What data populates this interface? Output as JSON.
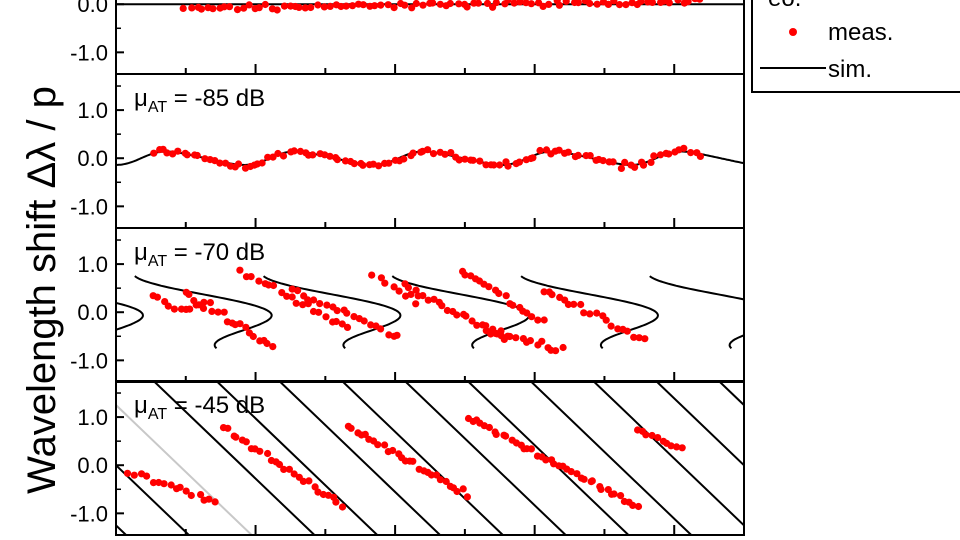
{
  "chart_data": {
    "type": "scatter",
    "ylabel": "Wavelength shift Δλ / p",
    "legend": {
      "placement": "top-right",
      "header_fragment": "eo.",
      "entries": [
        {
          "label": "meas.",
          "kind": "marker",
          "color": "#ff0000"
        },
        {
          "label": "sim.",
          "kind": "line",
          "color": "#000000"
        }
      ]
    },
    "colors": {
      "measured": "#ff0000",
      "simulated": "#000000",
      "faded_sim": "#c8c8c8"
    },
    "xlim": [
      0,
      1
    ],
    "ylim": [
      -1.45,
      1.75
    ],
    "yticks": [
      -1.0,
      0.0,
      1.0
    ],
    "ytick_labels": [
      "-1.0",
      "0.0",
      "1.0"
    ],
    "panels": [
      {
        "id": "top",
        "label": "",
        "model": {
          "kind": "flat",
          "value": 0.0
        },
        "measured_noise": 0.06,
        "measured_segments": [
          {
            "x_start": 0.11,
            "x_end": 0.93,
            "n": 90,
            "y_start": -0.08,
            "y_end": 0.06
          }
        ]
      },
      {
        "id": "mu85",
        "label": "μAT = -85 dB",
        "label_main": "μ",
        "label_sub": "AT",
        "label_value": " = -85 dB",
        "model": {
          "kind": "wave",
          "amplitude": 0.14,
          "period": 0.205,
          "phase": 0.04,
          "lean": 0.35
        },
        "measured_noise": 0.06,
        "measured_segments": [
          {
            "x_start": 0.06,
            "x_end": 0.93,
            "n": 110,
            "follow_model": true
          }
        ]
      },
      {
        "id": "mu70",
        "label": "μAT = -70 dB",
        "label_main": "μ",
        "label_sub": "AT",
        "label_value": " = -70 dB",
        "model": {
          "kind": "s-curve",
          "amplitude": 0.75,
          "period": 0.205,
          "phase": 0.03
        },
        "measured_noise": 0.06,
        "measured_segments": [
          {
            "x_start": 0.06,
            "x_end": 0.12,
            "n": 8,
            "y_start": 0.3,
            "y_end": 0.0
          },
          {
            "x_start": 0.11,
            "x_end": 0.14,
            "n": 6,
            "y_start": 0.35,
            "y_end": 0.1
          },
          {
            "x_start": 0.14,
            "x_end": 0.25,
            "n": 16,
            "y_start": 0.2,
            "y_end": -0.75
          },
          {
            "x_start": 0.2,
            "x_end": 0.37,
            "n": 20,
            "y_start": 0.85,
            "y_end": -0.35
          },
          {
            "x_start": 0.28,
            "x_end": 0.45,
            "n": 20,
            "y_start": 0.45,
            "y_end": -0.5
          },
          {
            "x_start": 0.41,
            "x_end": 0.48,
            "n": 8,
            "y_start": 0.8,
            "y_end": 0.2
          },
          {
            "x_start": 0.46,
            "x_end": 0.62,
            "n": 22,
            "y_start": 0.55,
            "y_end": -0.55
          },
          {
            "x_start": 0.55,
            "x_end": 0.68,
            "n": 18,
            "y_start": 0.9,
            "y_end": -0.2
          },
          {
            "x_start": 0.59,
            "x_end": 0.71,
            "n": 16,
            "y_start": -0.35,
            "y_end": -0.8
          },
          {
            "x_start": 0.68,
            "x_end": 0.84,
            "n": 20,
            "y_start": 0.45,
            "y_end": -0.55
          }
        ]
      },
      {
        "id": "mu45",
        "label": "μAT = -45 dB",
        "label_main": "μ",
        "label_sub": "AT",
        "label_value": " = -45 dB",
        "model": {
          "kind": "diagonals",
          "slope": -12.5,
          "spacing": 0.1,
          "phase": 0.0
        },
        "measured_noise": 0.05,
        "measured_segments": [
          {
            "x_start": 0.02,
            "x_end": 0.16,
            "n": 16,
            "y_start": -0.15,
            "y_end": -0.75
          },
          {
            "x_start": 0.17,
            "x_end": 0.36,
            "n": 26,
            "y_start": 0.8,
            "y_end": -0.85
          },
          {
            "x_start": 0.37,
            "x_end": 0.56,
            "n": 28,
            "y_start": 0.8,
            "y_end": -0.6
          },
          {
            "x_start": 0.56,
            "x_end": 0.83,
            "n": 40,
            "y_start": 1.0,
            "y_end": -0.85
          },
          {
            "x_start": 0.83,
            "x_end": 0.9,
            "n": 10,
            "y_start": 0.75,
            "y_end": 0.3
          }
        ]
      }
    ]
  }
}
